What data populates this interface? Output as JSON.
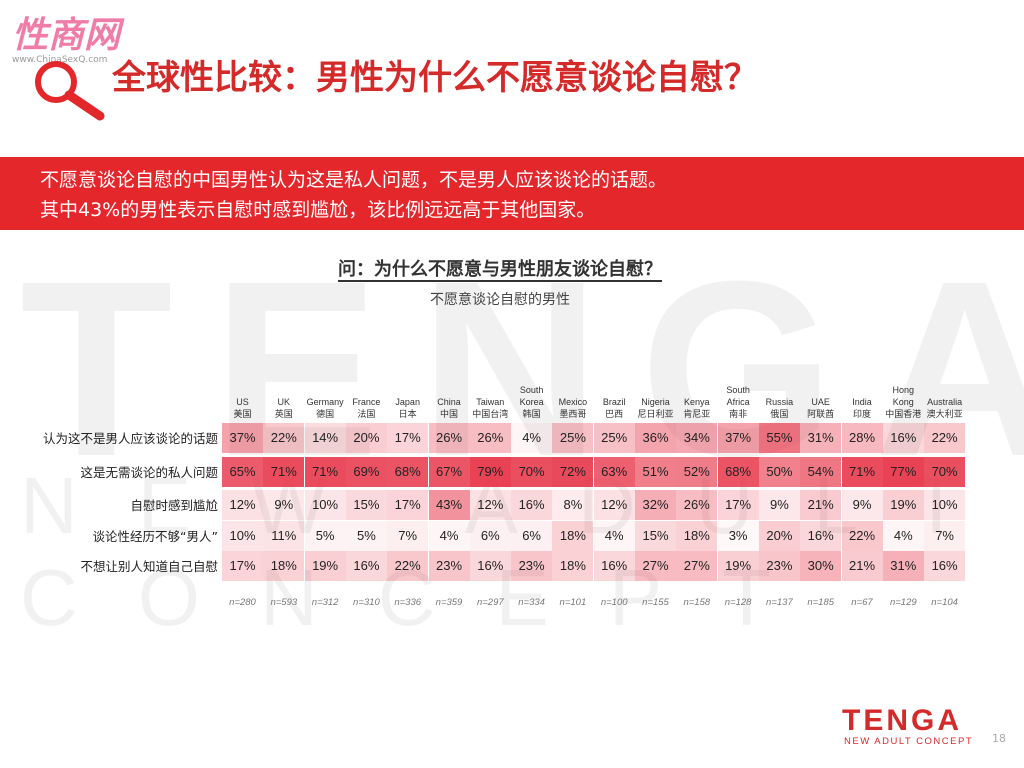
{
  "watermark": {
    "site": "性商网",
    "url": "www.ChinaSexQ.com"
  },
  "title": "全球性比较：男性为什么不愿意谈论自慰？",
  "banner": [
    "不愿意谈论自慰的中国男性认为这是私人问题，不是男人应该谈论的话题。",
    "其中43%的男性表示自慰时感到尴尬，该比例远远高于其他国家。"
  ],
  "question": "问：为什么不愿意与男性朋友谈论自慰？",
  "subtitle": "不愿意谈论自慰的男性",
  "table": {
    "columns": [
      {
        "en": "US",
        "cn": "美国"
      },
      {
        "en": "UK",
        "cn": "英国"
      },
      {
        "en": "Germany",
        "cn": "德国"
      },
      {
        "en": "France",
        "cn": "法国"
      },
      {
        "en": "Japan",
        "cn": "日本"
      },
      {
        "en": "China",
        "cn": "中国"
      },
      {
        "en": "Taiwan",
        "cn": "中国台湾"
      },
      {
        "en": "South Korea",
        "cn": "韩国"
      },
      {
        "en": "Mexico",
        "cn": "墨西哥"
      },
      {
        "en": "Brazil",
        "cn": "巴西"
      },
      {
        "en": "Nigeria",
        "cn": "尼日利亚"
      },
      {
        "en": "Kenya",
        "cn": "肯尼亚"
      },
      {
        "en": "South Africa",
        "cn": "南非"
      },
      {
        "en": "Russia",
        "cn": "俄国"
      },
      {
        "en": "UAE",
        "cn": "阿联酋"
      },
      {
        "en": "India",
        "cn": "印度"
      },
      {
        "en": "Hong Kong",
        "cn": "中国香港"
      },
      {
        "en": "Australia",
        "cn": "澳大利亚"
      }
    ],
    "rows": [
      {
        "label": "认为这不是男人应该谈论的话题",
        "cells": [
          "37%",
          "22%",
          "14%",
          "20%",
          "17%",
          "26%",
          "26%",
          "4%",
          "25%",
          "25%",
          "36%",
          "34%",
          "37%",
          "55%",
          "31%",
          "28%",
          "16%",
          "22%"
        ]
      },
      {
        "label": "这是无需谈论的私人问题",
        "cells": [
          "65%",
          "71%",
          "71%",
          "69%",
          "68%",
          "67%",
          "79%",
          "70%",
          "72%",
          "63%",
          "51%",
          "52%",
          "68%",
          "50%",
          "54%",
          "71%",
          "77%",
          "70%"
        ]
      },
      {
        "label": "自慰时感到尴尬",
        "cells": [
          "12%",
          "9%",
          "10%",
          "15%",
          "17%",
          "43%",
          "12%",
          "16%",
          "8%",
          "12%",
          "32%",
          "26%",
          "17%",
          "9%",
          "21%",
          "9%",
          "19%",
          "10%"
        ]
      },
      {
        "label": "谈论性经历不够“男人”",
        "cells": [
          "10%",
          "11%",
          "5%",
          "5%",
          "7%",
          "4%",
          "6%",
          "6%",
          "18%",
          "4%",
          "15%",
          "18%",
          "3%",
          "20%",
          "16%",
          "22%",
          "4%",
          "7%"
        ]
      },
      {
        "label": "不想让别人知道自己自慰",
        "cells": [
          "17%",
          "18%",
          "19%",
          "16%",
          "22%",
          "23%",
          "16%",
          "23%",
          "18%",
          "16%",
          "27%",
          "27%",
          "19%",
          "23%",
          "30%",
          "21%",
          "31%",
          "16%"
        ]
      }
    ],
    "n": [
      "n=280",
      "n=593",
      "n=312",
      "n=310",
      "n=336",
      "n=359",
      "n=297",
      "n=334",
      "n=101",
      "n=100",
      "n=155",
      "n=158",
      "n=128",
      "n=137",
      "n=185",
      "n=67",
      "n=129",
      "n=104"
    ]
  },
  "footer": {
    "logo": "TENGA",
    "tagline": "NEW ADULT CONCEPT",
    "page": "18"
  }
}
